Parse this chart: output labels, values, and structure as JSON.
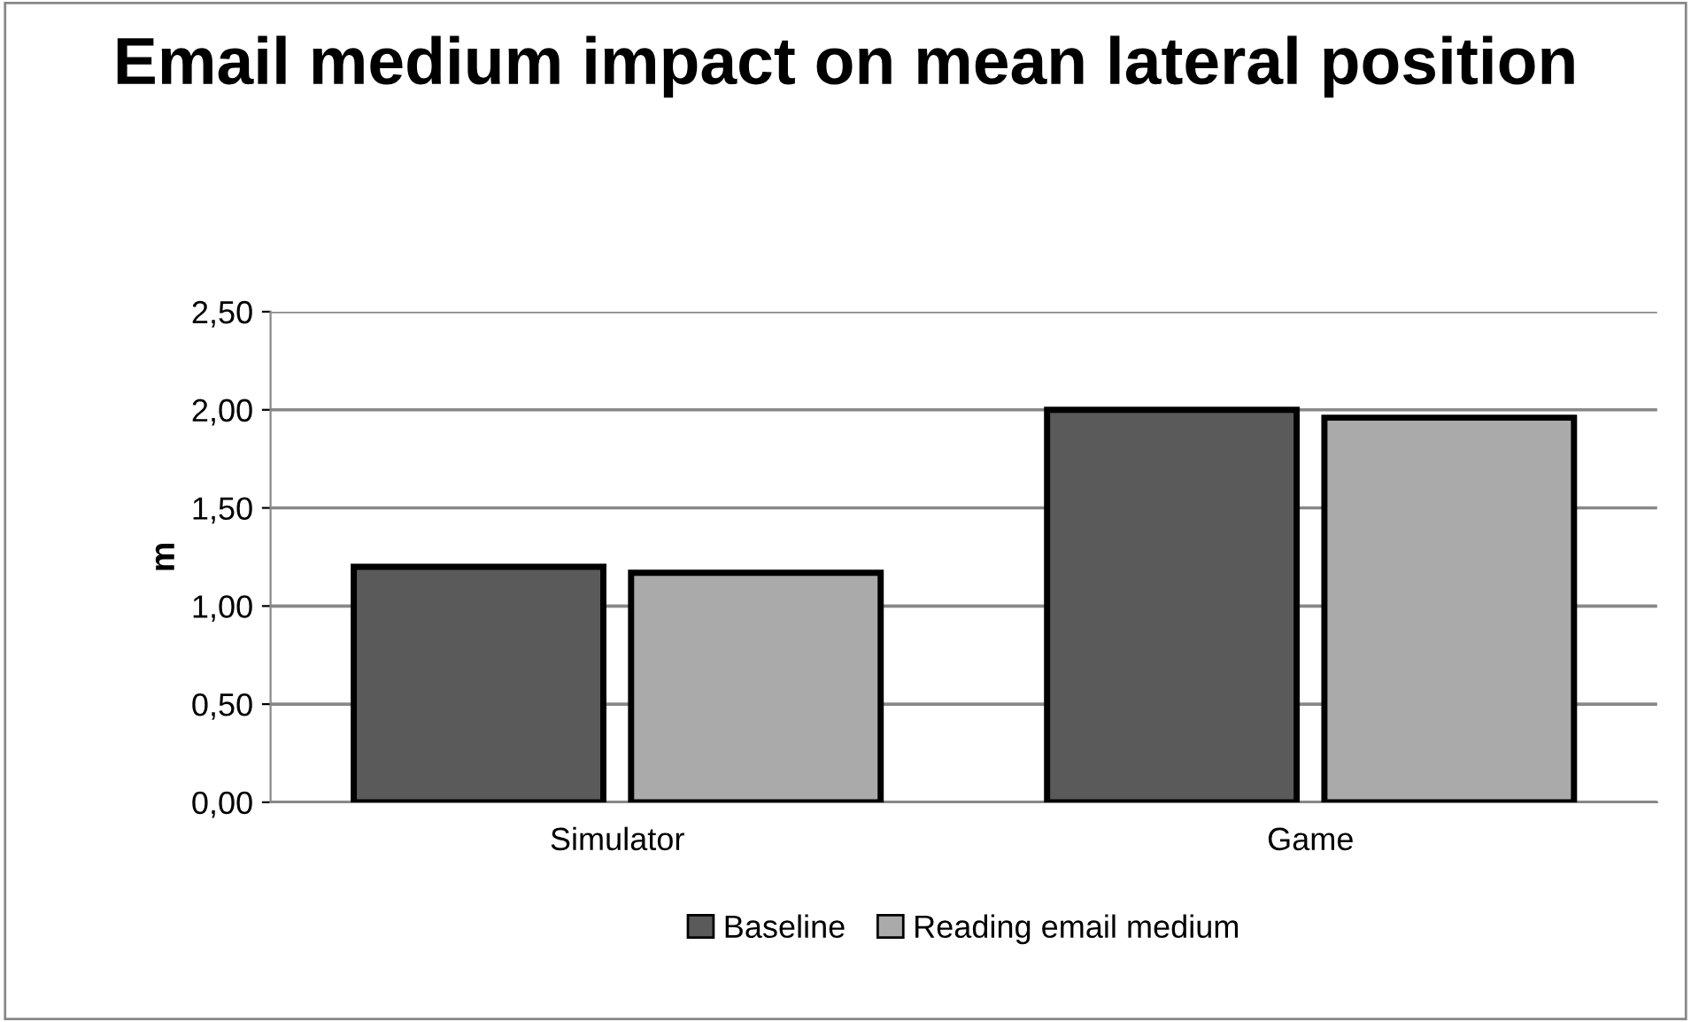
{
  "chart_data": {
    "type": "bar",
    "title": "Email medium impact on mean lateral position",
    "ylabel": "m",
    "categories": [
      "Simulator",
      "Game"
    ],
    "series": [
      {
        "name": "Baseline",
        "color": "#5a5a5a",
        "values": [
          1.2,
          2.0
        ]
      },
      {
        "name": "Reading email medium",
        "color": "#aaaaaa",
        "values": [
          1.17,
          1.96
        ]
      }
    ],
    "ylim": [
      0,
      2.5
    ],
    "yticks": [
      {
        "value": 0,
        "label": "0,00"
      },
      {
        "value": 0.5,
        "label": "0,50"
      },
      {
        "value": 1,
        "label": "1,00"
      },
      {
        "value": 1.5,
        "label": "1,50"
      },
      {
        "value": 2,
        "label": "2,00"
      },
      {
        "value": 2.5,
        "label": "2,50"
      }
    ],
    "grid": "y",
    "legend": "bottom"
  }
}
